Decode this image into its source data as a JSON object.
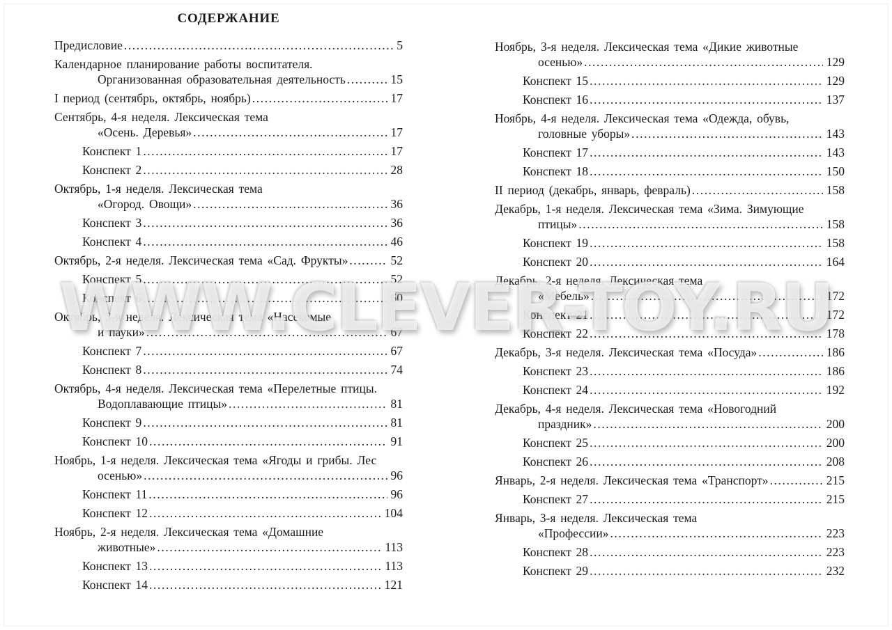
{
  "page": {
    "title": "СОДЕРЖАНИЕ",
    "watermark": "WWW.CLEVER-TOY.RU",
    "colors": {
      "paper": "#ffffff",
      "text": "#1b1b1b",
      "watermark_shadow": "#9a9a9a"
    }
  },
  "toc": {
    "columns": [
      {
        "side": "left",
        "entries": [
          {
            "type": "item",
            "lines": [
              "Предисловие"
            ],
            "page": "5"
          },
          {
            "type": "item",
            "lines": [
              "Календарное планирование работы воспитателя.",
              "Организованная образовательная деятельность"
            ],
            "page": "15"
          },
          {
            "type": "item",
            "lines": [
              "I период (сентябрь, октябрь, ноябрь)"
            ],
            "page": "17"
          },
          {
            "type": "item",
            "lines": [
              "Сентябрь, 4-я неделя. Лексическая тема",
              "«Осень. Деревья»"
            ],
            "page": "17"
          },
          {
            "type": "sub",
            "lines": [
              "Конспект 1"
            ],
            "page": "17"
          },
          {
            "type": "sub",
            "lines": [
              "Конспект 2"
            ],
            "page": "28"
          },
          {
            "type": "item",
            "lines": [
              "Октябрь, 1-я неделя. Лексическая тема",
              "«Огород. Овощи»"
            ],
            "page": "36"
          },
          {
            "type": "sub",
            "lines": [
              "Конспект 3"
            ],
            "page": "36"
          },
          {
            "type": "sub",
            "lines": [
              "Конспект 4"
            ],
            "page": "46"
          },
          {
            "type": "item",
            "lines": [
              "Октябрь, 2-я неделя. Лексическая тема «Сад. Фрукты»"
            ],
            "page": "52"
          },
          {
            "type": "sub",
            "lines": [
              "Конспект 5"
            ],
            "page": "52"
          },
          {
            "type": "sub",
            "lines": [
              "Конспект 6"
            ],
            "page": "60"
          },
          {
            "type": "item",
            "lines": [
              "Октябрь, 3-я неделя. Лексическая тема «Насекомые",
              "и пауки»"
            ],
            "page": "67"
          },
          {
            "type": "sub",
            "lines": [
              "Конспект 7"
            ],
            "page": "67"
          },
          {
            "type": "sub",
            "lines": [
              "Конспект 8"
            ],
            "page": "74"
          },
          {
            "type": "item",
            "lines": [
              "Октябрь, 4-я неделя. Лексическая тема «Перелетные птицы.",
              "Водоплавающие птицы»"
            ],
            "page": "81"
          },
          {
            "type": "sub",
            "lines": [
              "Конспект 9"
            ],
            "page": "81"
          },
          {
            "type": "sub",
            "lines": [
              "Конспект 10"
            ],
            "page": "91"
          },
          {
            "type": "item",
            "lines": [
              "Ноябрь, 1-я неделя. Лексическая тема «Ягоды и грибы. Лес",
              "осенью»"
            ],
            "page": "96"
          },
          {
            "type": "sub",
            "lines": [
              "Конспект 11"
            ],
            "page": "96"
          },
          {
            "type": "sub",
            "lines": [
              "Конспект 12"
            ],
            "page": "104"
          },
          {
            "type": "item",
            "lines": [
              "Ноябрь, 2-я неделя. Лексическая тема «Домашние",
              "животные»"
            ],
            "page": "113"
          },
          {
            "type": "sub",
            "lines": [
              "Конспект 13"
            ],
            "page": "113"
          },
          {
            "type": "sub",
            "lines": [
              "Конспект 14"
            ],
            "page": "121"
          }
        ]
      },
      {
        "side": "right",
        "entries": [
          {
            "type": "item",
            "lines": [
              "Ноябрь, 3-я неделя. Лексическая тема «Дикие животные",
              "осенью»"
            ],
            "page": "129"
          },
          {
            "type": "sub",
            "lines": [
              "Конспект 15"
            ],
            "page": "129"
          },
          {
            "type": "sub",
            "lines": [
              "Конспект 16"
            ],
            "page": "137"
          },
          {
            "type": "item",
            "lines": [
              "Ноябрь, 4-я неделя. Лексическая тема «Одежда, обувь,",
              "головные уборы»"
            ],
            "page": "143"
          },
          {
            "type": "sub",
            "lines": [
              "Конспект 17"
            ],
            "page": "143"
          },
          {
            "type": "sub",
            "lines": [
              "Конспект 18"
            ],
            "page": "150"
          },
          {
            "type": "item",
            "lines": [
              "II период (декабрь, январь, февраль)"
            ],
            "page": "158"
          },
          {
            "type": "item",
            "lines": [
              "Декабрь, 1-я неделя. Лексическая тема «Зима. Зимующие",
              "птицы»"
            ],
            "page": "158"
          },
          {
            "type": "sub",
            "lines": [
              "Конспект 19"
            ],
            "page": "158"
          },
          {
            "type": "sub",
            "lines": [
              "Конспект 20"
            ],
            "page": "164"
          },
          {
            "type": "item",
            "lines": [
              "Декабрь, 2-я неделя. Лексическая тема",
              "«Мебель»"
            ],
            "page": "172"
          },
          {
            "type": "sub",
            "lines": [
              "Конспект 21"
            ],
            "page": "172"
          },
          {
            "type": "sub",
            "lines": [
              "Конспект 22"
            ],
            "page": "178"
          },
          {
            "type": "item",
            "lines": [
              "Декабрь, 3-я неделя. Лексическая тема «Посуда»"
            ],
            "page": "186"
          },
          {
            "type": "sub",
            "lines": [
              "Конспект 23"
            ],
            "page": "186"
          },
          {
            "type": "sub",
            "lines": [
              "Конспект 24"
            ],
            "page": "192"
          },
          {
            "type": "item",
            "lines": [
              "Декабрь, 4-я неделя. Лексическая тема «Новогодний",
              "праздник»"
            ],
            "page": "200"
          },
          {
            "type": "sub",
            "lines": [
              "Конспект 25"
            ],
            "page": "200"
          },
          {
            "type": "sub",
            "lines": [
              "Конспект 26"
            ],
            "page": "208"
          },
          {
            "type": "item",
            "lines": [
              "Январь, 2-я неделя. Лексическая тема «Транспорт»"
            ],
            "page": "215"
          },
          {
            "type": "sub",
            "lines": [
              "Конспект 27"
            ],
            "page": "215"
          },
          {
            "type": "item",
            "lines": [
              "Январь, 3-я неделя. Лексическая тема",
              "«Профессии»"
            ],
            "page": "223"
          },
          {
            "type": "sub",
            "lines": [
              "Конспект 28"
            ],
            "page": "223"
          },
          {
            "type": "sub",
            "lines": [
              "Конспект 29"
            ],
            "page": "232"
          }
        ]
      }
    ]
  }
}
